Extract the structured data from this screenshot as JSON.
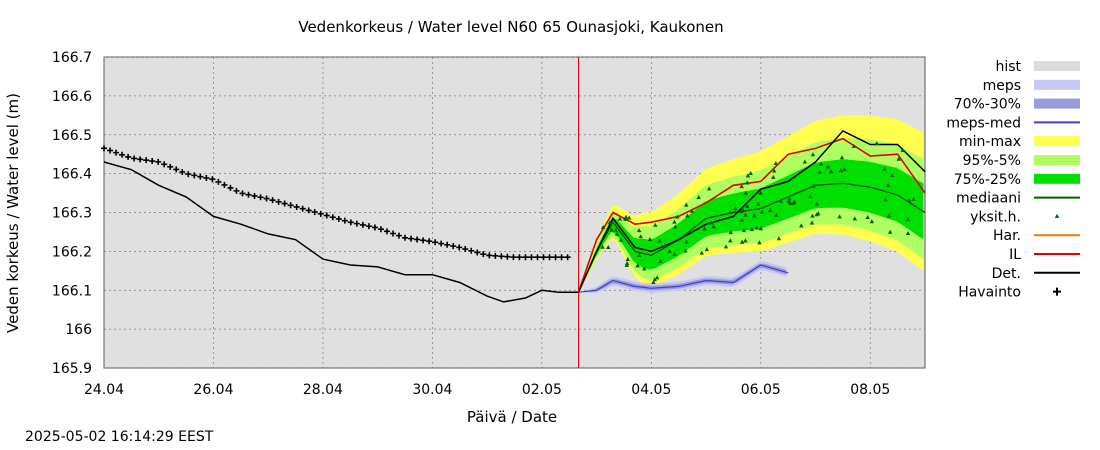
{
  "chart_data": {
    "type": "line",
    "title": "Vedenkorkeus / Water level   N60 65 Ounasjoki, Kaukonen",
    "xlabel": "Päivä / Date",
    "ylabel": "Veden korkeus / Water level (m)",
    "ylim": [
      165.9,
      166.7
    ],
    "yticks": [
      "166.7",
      "166.6",
      "166.5",
      "166.4",
      "166.3",
      "166.2",
      "166.1",
      "166",
      "165.9"
    ],
    "xlim_days": [
      0,
      15
    ],
    "xticks": [
      {
        "day": 0,
        "label": "24.04"
      },
      {
        "day": 2,
        "label": "26.04"
      },
      {
        "day": 4,
        "label": "28.04"
      },
      {
        "day": 6,
        "label": "30.04"
      },
      {
        "day": 8,
        "label": "02.05"
      },
      {
        "day": 10,
        "label": "04.05"
      },
      {
        "day": 12,
        "label": "06.05"
      },
      {
        "day": 14,
        "label": "08.05"
      }
    ],
    "forecast_start_day": 8.67,
    "grid": true,
    "legend_placement": "right",
    "legend": [
      {
        "label": "hist",
        "kind": "band",
        "color": "#dcdcdc"
      },
      {
        "label": "meps",
        "kind": "band",
        "color": "#c8c8f5"
      },
      {
        "label": "70%-30%",
        "kind": "band",
        "color": "#9a9adc"
      },
      {
        "label": "meps-med",
        "kind": "line",
        "color": "#4040c8"
      },
      {
        "label": "min-max",
        "kind": "band",
        "color": "#ffff50"
      },
      {
        "label": "95%-5%",
        "kind": "band",
        "color": "#b0ff60"
      },
      {
        "label": "75%-25%",
        "kind": "band",
        "color": "#00e000"
      },
      {
        "label": "mediaani",
        "kind": "line",
        "color": "#006000"
      },
      {
        "label": "yksit.h.",
        "kind": "marker",
        "color": "#006000"
      },
      {
        "label": "Har.",
        "kind": "line",
        "color": "#e08000"
      },
      {
        "label": "IL",
        "kind": "line",
        "color": "#e00000"
      },
      {
        "label": "Det.",
        "kind": "line",
        "color": "#000000"
      },
      {
        "label": "Havainto",
        "kind": "plus",
        "color": "#000000"
      }
    ],
    "series": [
      {
        "name": "Havainto",
        "x": [
          0,
          0.5,
          1,
          1.5,
          2,
          2.5,
          3,
          3.5,
          4,
          4.5,
          5,
          5.5,
          6,
          6.5,
          7,
          7.5,
          8,
          8.5
        ],
        "y": [
          166.465,
          166.44,
          166.43,
          166.4,
          166.385,
          166.35,
          166.335,
          166.315,
          166.295,
          166.275,
          166.26,
          166.235,
          166.225,
          166.21,
          166.19,
          166.185,
          166.185,
          166.185
        ]
      },
      {
        "name": "Det.",
        "x": [
          0,
          0.5,
          1,
          1.5,
          2,
          2.5,
          3,
          3.5,
          4,
          4.5,
          5,
          5.5,
          6,
          6.5,
          7,
          7.3,
          7.7,
          8,
          8.3,
          8.67,
          9,
          9.3,
          9.7,
          10,
          10.5,
          11,
          11.5,
          12,
          12.5,
          13,
          13.5,
          14,
          14.5,
          15
        ],
        "y": [
          166.43,
          166.41,
          166.37,
          166.34,
          166.29,
          166.27,
          166.245,
          166.23,
          166.18,
          166.165,
          166.16,
          166.14,
          166.14,
          166.12,
          166.085,
          166.07,
          166.08,
          166.1,
          166.095,
          166.095,
          166.2,
          166.285,
          166.21,
          166.2,
          166.23,
          166.27,
          166.29,
          166.36,
          166.38,
          166.43,
          166.51,
          166.475,
          166.475,
          166.405
        ]
      },
      {
        "name": "IL",
        "x": [
          8.67,
          9,
          9.3,
          9.7,
          10,
          10.5,
          11,
          11.5,
          12,
          12.5,
          13,
          13.5,
          14,
          14.5,
          15
        ],
        "y": [
          166.095,
          166.23,
          166.3,
          166.27,
          166.275,
          166.29,
          166.325,
          166.37,
          166.38,
          166.45,
          166.465,
          166.49,
          166.445,
          166.45,
          166.35
        ]
      },
      {
        "name": "mediaani",
        "x": [
          8.67,
          9,
          9.3,
          9.7,
          10,
          10.5,
          11,
          11.5,
          12,
          12.5,
          13,
          13.5,
          14,
          14.5,
          15
        ],
        "y": [
          166.095,
          166.2,
          166.275,
          166.2,
          166.19,
          166.23,
          166.285,
          166.3,
          166.31,
          166.34,
          166.37,
          166.375,
          166.365,
          166.345,
          166.3
        ]
      },
      {
        "name": "meps-med",
        "x": [
          8.67,
          9,
          9.3,
          9.7,
          10,
          10.5,
          11,
          11.5,
          12,
          12.5
        ],
        "y": [
          166.095,
          166.1,
          166.125,
          166.11,
          166.105,
          166.11,
          166.125,
          166.12,
          166.165,
          166.145
        ]
      }
    ]
  },
  "footer": {
    "timestamp": "2025-05-02 16:14:29 EEST"
  }
}
